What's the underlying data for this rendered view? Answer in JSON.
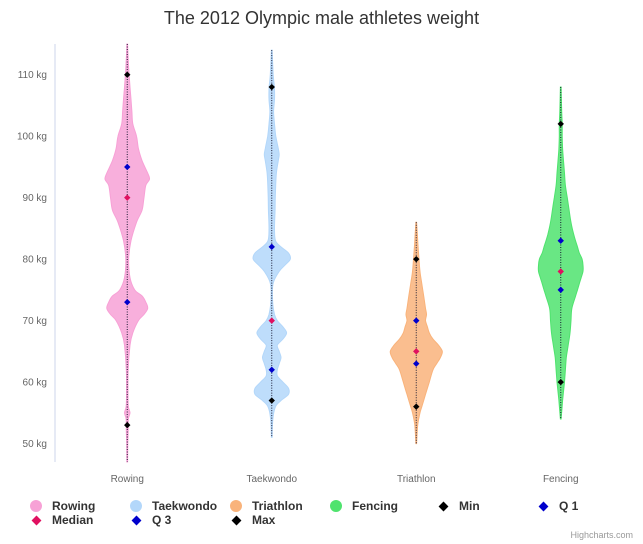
{
  "title": "The 2012 Olympic male athletes weight",
  "credits": "Highcharts.com",
  "chart_data": {
    "type": "violin",
    "title": "The 2012 Olympic male athletes weight",
    "xlabel": "",
    "ylabel": "",
    "ylim": [
      47,
      115
    ],
    "y_ticks": [
      50,
      60,
      70,
      80,
      90,
      100,
      110
    ],
    "y_unit": "kg",
    "categories": [
      "Rowing",
      "Taekwondo",
      "Triathlon",
      "Fencing"
    ],
    "series": [
      {
        "name": "Rowing",
        "color": "#f7a1d6",
        "range": [
          47,
          115
        ],
        "density": [
          [
            47,
            0.2
          ],
          [
            50,
            0.3
          ],
          [
            52,
            0.5
          ],
          [
            54,
            0.6
          ],
          [
            55,
            1.5
          ],
          [
            56,
            0.6
          ],
          [
            58,
            0.4
          ],
          [
            62,
            0.5
          ],
          [
            66,
            1.5
          ],
          [
            68,
            3
          ],
          [
            70,
            6
          ],
          [
            71,
            9
          ],
          [
            72,
            11
          ],
          [
            73,
            10
          ],
          [
            74,
            8
          ],
          [
            75,
            4
          ],
          [
            77,
            1.5
          ],
          [
            80,
            0.8
          ],
          [
            83,
            2
          ],
          [
            86,
            5
          ],
          [
            88,
            8
          ],
          [
            90,
            9
          ],
          [
            92,
            10
          ],
          [
            93,
            12
          ],
          [
            94,
            11
          ],
          [
            96,
            8
          ],
          [
            98,
            6
          ],
          [
            100,
            5
          ],
          [
            102,
            3
          ],
          [
            104,
            2.5
          ],
          [
            106,
            2
          ],
          [
            108,
            1.5
          ],
          [
            110,
            1
          ],
          [
            112,
            0.6
          ],
          [
            115,
            0.2
          ]
        ]
      },
      {
        "name": "Taekwondo",
        "color": "#b3d7fa",
        "range": [
          51,
          114
        ],
        "density": [
          [
            51,
            0.2
          ],
          [
            54,
            0.6
          ],
          [
            56,
            2
          ],
          [
            57,
            5
          ],
          [
            58,
            9
          ],
          [
            59,
            9
          ],
          [
            60,
            6
          ],
          [
            61,
            3
          ],
          [
            62,
            3
          ],
          [
            63,
            4
          ],
          [
            64,
            5
          ],
          [
            65,
            4
          ],
          [
            66,
            3
          ],
          [
            67,
            6
          ],
          [
            68,
            8
          ],
          [
            69,
            6
          ],
          [
            70,
            3
          ],
          [
            71,
            1.5
          ],
          [
            73,
            0.5
          ],
          [
            76,
            0.7
          ],
          [
            78,
            4
          ],
          [
            79,
            7
          ],
          [
            80,
            10
          ],
          [
            81,
            9
          ],
          [
            82,
            5
          ],
          [
            83,
            2
          ],
          [
            85,
            1.5
          ],
          [
            88,
            1.8
          ],
          [
            91,
            2
          ],
          [
            94,
            2.5
          ],
          [
            96,
            3.5
          ],
          [
            97,
            4
          ],
          [
            98,
            3.5
          ],
          [
            100,
            2.2
          ],
          [
            102,
            1.5
          ],
          [
            104,
            1
          ],
          [
            106,
            1.5
          ],
          [
            108,
            1.4
          ],
          [
            110,
            0.8
          ],
          [
            114,
            0.2
          ]
        ]
      },
      {
        "name": "Triathlon",
        "color": "#f9b37b",
        "range": [
          50,
          86
        ],
        "density": [
          [
            50,
            0.2
          ],
          [
            53,
            0.8
          ],
          [
            55,
            2
          ],
          [
            56,
            3
          ],
          [
            58,
            5
          ],
          [
            60,
            7
          ],
          [
            62,
            9
          ],
          [
            63,
            11
          ],
          [
            64,
            13
          ],
          [
            65,
            14
          ],
          [
            66,
            12
          ],
          [
            67,
            9
          ],
          [
            68,
            7
          ],
          [
            69,
            6
          ],
          [
            70,
            5
          ],
          [
            71,
            5.5
          ],
          [
            72,
            5
          ],
          [
            74,
            4
          ],
          [
            76,
            3
          ],
          [
            78,
            2
          ],
          [
            80,
            1.5
          ],
          [
            82,
            1
          ],
          [
            84,
            0.6
          ],
          [
            86,
            0.2
          ]
        ]
      },
      {
        "name": "Fencing",
        "color": "#4fe36e",
        "range": [
          54,
          108
        ],
        "density": [
          [
            54,
            0.2
          ],
          [
            57,
            1
          ],
          [
            60,
            2
          ],
          [
            62,
            2.5
          ],
          [
            64,
            3
          ],
          [
            66,
            4
          ],
          [
            68,
            5
          ],
          [
            70,
            5.5
          ],
          [
            72,
            6
          ],
          [
            74,
            8
          ],
          [
            75,
            9
          ],
          [
            76,
            10
          ],
          [
            77,
            11
          ],
          [
            78,
            12
          ],
          [
            79,
            12
          ],
          [
            80,
            11.5
          ],
          [
            81,
            10
          ],
          [
            82,
            9
          ],
          [
            84,
            7
          ],
          [
            86,
            5.5
          ],
          [
            88,
            4.5
          ],
          [
            90,
            3.5
          ],
          [
            92,
            2.5
          ],
          [
            94,
            2
          ],
          [
            96,
            1.5
          ],
          [
            98,
            1
          ],
          [
            100,
            0.8
          ],
          [
            102,
            0.8
          ],
          [
            104,
            0.5
          ],
          [
            108,
            0.2
          ]
        ]
      }
    ],
    "stats": [
      {
        "category": "Rowing",
        "min": 53,
        "q1": 73,
        "median": 90,
        "q3": 95,
        "max": 110
      },
      {
        "category": "Taekwondo",
        "min": 57,
        "q1": 62,
        "median": 70,
        "q3": 82,
        "max": 108
      },
      {
        "category": "Triathlon",
        "min": 56,
        "q1": 63,
        "median": 65,
        "q3": 70,
        "max": 80
      },
      {
        "category": "Fencing",
        "min": 60,
        "q1": 75,
        "median": 78,
        "q3": 83,
        "max": 102
      }
    ],
    "marker_series": [
      {
        "name": "Min",
        "stat": "min",
        "color": "#000000"
      },
      {
        "name": "Q 1",
        "stat": "q1",
        "color": "#0000cc"
      },
      {
        "name": "Median",
        "stat": "median",
        "color": "#e01060"
      },
      {
        "name": "Q 3",
        "stat": "q3",
        "color": "#0000cc"
      },
      {
        "name": "Max",
        "stat": "max",
        "color": "#000000"
      }
    ],
    "legend": {
      "placement": "bottom",
      "items": [
        {
          "label": "Rowing",
          "kind": "circle",
          "color": "#f7a1d6"
        },
        {
          "label": "Taekwondo",
          "kind": "circle",
          "color": "#b3d7fa"
        },
        {
          "label": "Triathlon",
          "kind": "circle",
          "color": "#f9b37b"
        },
        {
          "label": "Fencing",
          "kind": "circle",
          "color": "#4fe36e"
        },
        {
          "label": "Min",
          "kind": "diamond",
          "color": "#000000"
        },
        {
          "label": "Q 1",
          "kind": "diamond",
          "color": "#0000cc"
        },
        {
          "label": "Median",
          "kind": "diamond",
          "color": "#e01060"
        },
        {
          "label": "Q 3",
          "kind": "diamond",
          "color": "#0000cc"
        },
        {
          "label": "Max",
          "kind": "diamond",
          "color": "#000000"
        }
      ]
    }
  }
}
